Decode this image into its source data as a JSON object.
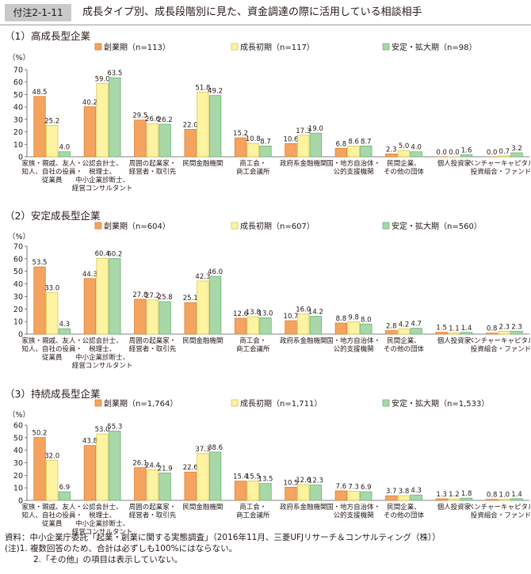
{
  "header": {
    "figure_label": "付注2-1-11",
    "title": "成長タイプ別、成長段階別に見た、資金調達の際に活用している相談相手"
  },
  "colors": {
    "series": [
      "#f4a45f",
      "#fdf3a0",
      "#a8d8a8"
    ],
    "series_stroke": [
      "#e07f2e",
      "#d8c54f",
      "#6bb37a"
    ],
    "axis": "#5a5a5a",
    "text": "#231815"
  },
  "chart_data": [
    {
      "type": "bar",
      "title": "（1）高成長型企業",
      "ylabel": "（%）",
      "ylim": [
        0,
        70
      ],
      "yticks": [
        0,
        10,
        20,
        30,
        40,
        50,
        60,
        70
      ],
      "categories": [
        [
          "家族・親戚、友人・",
          "知人、自社の役員・",
          "従業員"
        ],
        [
          "公認会計士、",
          "税理士、",
          "中小企業診断士、",
          "経営コンサルタント"
        ],
        [
          "周囲の起業家・",
          "経営者・取引先"
        ],
        [
          "民間金融機関"
        ],
        [
          "商工会・",
          "商工会議所"
        ],
        [
          "政府系金融機関"
        ],
        [
          "国・地方自治体・",
          "公的支援機関"
        ],
        [
          "民間企業、",
          "その他の団体"
        ],
        [
          "個人投資家"
        ],
        [
          "ベンチャーキャピタル、",
          "投資組合・ファンド等"
        ]
      ],
      "series": [
        {
          "name": "創業期（n=113）",
          "values": [
            48.5,
            40.2,
            29.5,
            22.0,
            15.2,
            10.6,
            6.8,
            2.3,
            0.0,
            0.0
          ]
        },
        {
          "name": "成長初期（n=117）",
          "values": [
            25.2,
            59.0,
            26.6,
            51.8,
            10.8,
            17.3,
            8.6,
            5.0,
            0.0,
            0.7
          ]
        },
        {
          "name": "安定・拡大期（n=98）",
          "values": [
            4.0,
            63.5,
            26.2,
            49.2,
            8.7,
            19.0,
            8.7,
            4.0,
            1.6,
            3.2
          ]
        }
      ]
    },
    {
      "type": "bar",
      "title": "（2）安定成長型企業",
      "ylabel": "（%）",
      "ylim": [
        0,
        70
      ],
      "yticks": [
        0,
        10,
        20,
        30,
        40,
        50,
        60,
        70
      ],
      "categories": [
        [
          "家族・親戚、友人・",
          "知人、自社の役員・",
          "従業員"
        ],
        [
          "公認会計士、",
          "税理士、",
          "中小企業診断士、",
          "経営コンサルタント"
        ],
        [
          "周囲の起業家・",
          "経営者・取引先"
        ],
        [
          "民間金融機関"
        ],
        [
          "商工会・",
          "商工会議所"
        ],
        [
          "政府系金融機関"
        ],
        [
          "国・地方自治体・",
          "公的支援機関"
        ],
        [
          "民間企業、",
          "その他の団体"
        ],
        [
          "個人投資家"
        ],
        [
          "ベンチャーキャピタル、",
          "投資組合・ファンド等"
        ]
      ],
      "series": [
        {
          "name": "創業期（n=604）",
          "values": [
            53.5,
            44.3,
            27.8,
            25.1,
            12.6,
            10.7,
            8.8,
            2.8,
            1.5,
            0.8
          ]
        },
        {
          "name": "成長初期（n=607）",
          "values": [
            33.0,
            60.4,
            27.2,
            42.3,
            13.8,
            16.0,
            9.8,
            4.2,
            1.1,
            2.3
          ]
        },
        {
          "name": "安定・拡大期（n=560）",
          "values": [
            4.3,
            60.2,
            25.8,
            46.0,
            13.0,
            14.2,
            8.0,
            4.7,
            1.4,
            2.3
          ]
        }
      ]
    },
    {
      "type": "bar",
      "title": "（3）持続成長型企業",
      "ylabel": "（%）",
      "ylim": [
        0,
        60
      ],
      "yticks": [
        0,
        10,
        20,
        30,
        40,
        50,
        60
      ],
      "categories": [
        [
          "家族・親戚、友人・",
          "知人、自社の役員・",
          "従業員"
        ],
        [
          "公認会計士、",
          "税理士、",
          "中小企業診断士、",
          "経営コンサルタント"
        ],
        [
          "周囲の起業家・",
          "経営者・取引先"
        ],
        [
          "民間金融機関"
        ],
        [
          "商工会・",
          "商工会議所"
        ],
        [
          "政府系金融機関"
        ],
        [
          "国・地方自治体・",
          "公的支援機関"
        ],
        [
          "民間企業、",
          "その他の団体"
        ],
        [
          "個人投資家"
        ],
        [
          "ベンチャーキャピタル、",
          "投資組合・ファンド等"
        ]
      ],
      "series": [
        {
          "name": "創業期（n=1,764）",
          "values": [
            50.2,
            43.8,
            26.1,
            22.6,
            15.4,
            10.5,
            7.6,
            3.7,
            1.3,
            0.8
          ]
        },
        {
          "name": "成長初期（n=1,711）",
          "values": [
            32.0,
            53.0,
            24.4,
            37.3,
            15.5,
            12.6,
            7.3,
            3.8,
            1.2,
            1.0
          ]
        },
        {
          "name": "安定・拡大期（n=1,533）",
          "values": [
            6.9,
            55.3,
            21.9,
            38.6,
            13.5,
            12.3,
            6.9,
            4.3,
            1.8,
            1.4
          ]
        }
      ]
    }
  ],
  "notes": [
    "資料：中小企業庁委託「起業・創業に関する実態調査」（2016年11月、三菱UFJリサーチ＆コンサルティング（株））",
    "(注)1. 複数回答のため、合計は必ずしも100%にはならない。",
    "2.「その他」の項目は表示していない。"
  ]
}
